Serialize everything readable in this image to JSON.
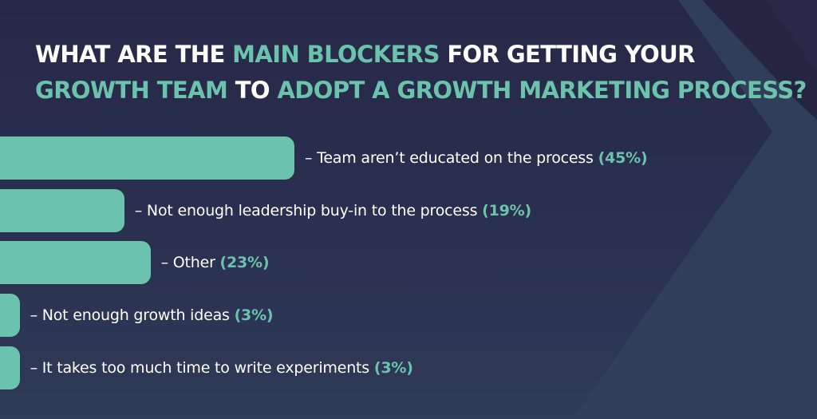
{
  "colors": {
    "background_top": "#262846",
    "background_bottom": "#2f3b57",
    "accent": "#6cc3ad",
    "text": "#ffffff"
  },
  "title": {
    "line1": [
      {
        "text": "WHAT ARE THE ",
        "highlight": false
      },
      {
        "text": "MAIN BLOCKERS",
        "highlight": true
      },
      {
        "text": " FOR GETTING YOUR",
        "highlight": false
      }
    ],
    "line2": [
      {
        "text": "GROWTH TEAM",
        "highlight": true
      },
      {
        "text": " TO ",
        "highlight": false
      },
      {
        "text": "ADOPT A GROWTH MARKETING PROCESS?",
        "highlight": true
      }
    ]
  },
  "chart_data": {
    "type": "bar",
    "orientation": "horizontal",
    "categories": [
      "Team aren’t educated on the process",
      "Not enough leadership buy-in to the process",
      "Other",
      "Not enough growth ideas",
      "It takes too much time to write experiments"
    ],
    "values": [
      45,
      19,
      23,
      3,
      3
    ],
    "value_labels": [
      "(45%)",
      "(19%)",
      "(23%)",
      "(3%)",
      "(3%)"
    ],
    "label_prefix": "– ",
    "bar_color": "#6cc3ad",
    "label_color": "#ffffff",
    "value_label_color": "#6cc3ad",
    "grid": false,
    "legend": "none"
  }
}
